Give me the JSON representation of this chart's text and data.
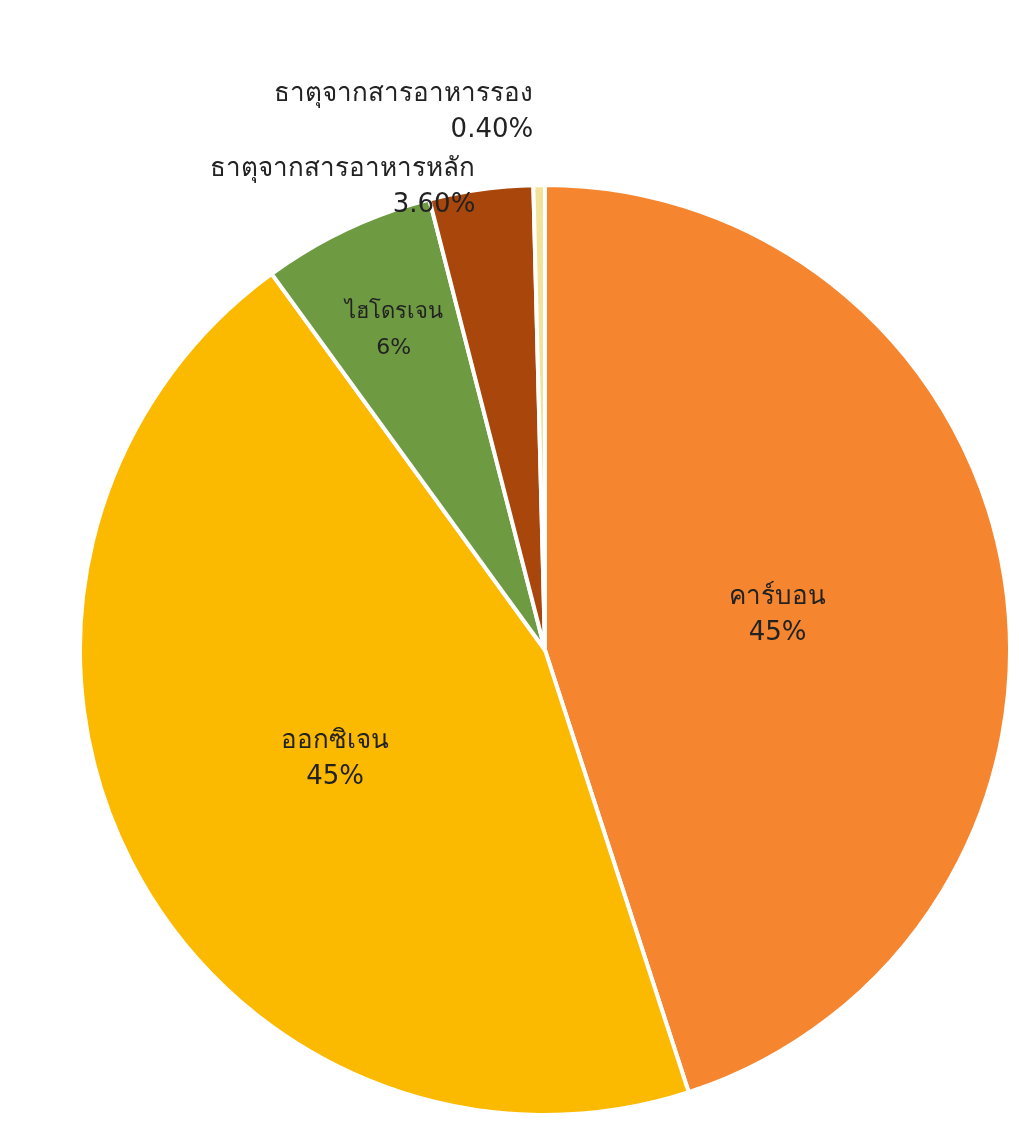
{
  "chart_data": {
    "type": "pie",
    "categories": [
      "คาร์บอน",
      "ออกซิเจน",
      "ไฮโดรเจน",
      "ธาตุจากสารอาหารหลัก",
      "ธาตุจากสารอาหารรอง"
    ],
    "values": [
      45,
      45,
      6,
      3.6,
      0.4
    ],
    "value_labels": [
      "45%",
      "45%",
      "6%",
      "3.60%",
      "0.40%"
    ],
    "colors": [
      "#f5862f",
      "#fbb900",
      "#6e9a42",
      "#a8460b",
      "#f1e49a"
    ],
    "legend": false
  }
}
